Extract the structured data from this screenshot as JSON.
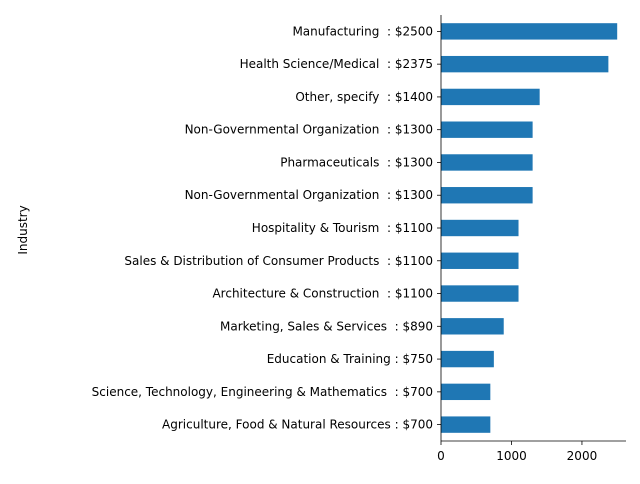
{
  "chart_data": {
    "type": "bar",
    "orientation": "horizontal",
    "title": "",
    "xlabel": "",
    "ylabel": "Industry",
    "categories": [
      "Manufacturing  : $2500",
      "Health Science/Medical  : $2375",
      "Other, specify  : $1400",
      "Non-Governmental Organization  : $1300",
      "Pharmaceuticals  : $1300",
      "Non-Governmental Organization  : $1300",
      "Hospitality & Tourism  : $1100",
      "Sales & Distribution of Consumer Products  : $1100",
      "Architecture & Construction  : $1100",
      "Marketing, Sales & Services  : $890",
      "Education & Training : $750",
      "Science, Technology, Engineering & Mathematics  : $700",
      "Agriculture, Food & Natural Resources : $700"
    ],
    "values": [
      2500,
      2375,
      1400,
      1300,
      1300,
      1300,
      1100,
      1100,
      1100,
      890,
      750,
      700,
      700
    ],
    "xlim": [
      0,
      2625
    ],
    "xticks": [
      0,
      1000,
      2000
    ],
    "xtick_labels": [
      "0",
      "1000",
      "2000"
    ],
    "bar_color": "#1f77b4",
    "grid": false,
    "legend": "none"
  }
}
